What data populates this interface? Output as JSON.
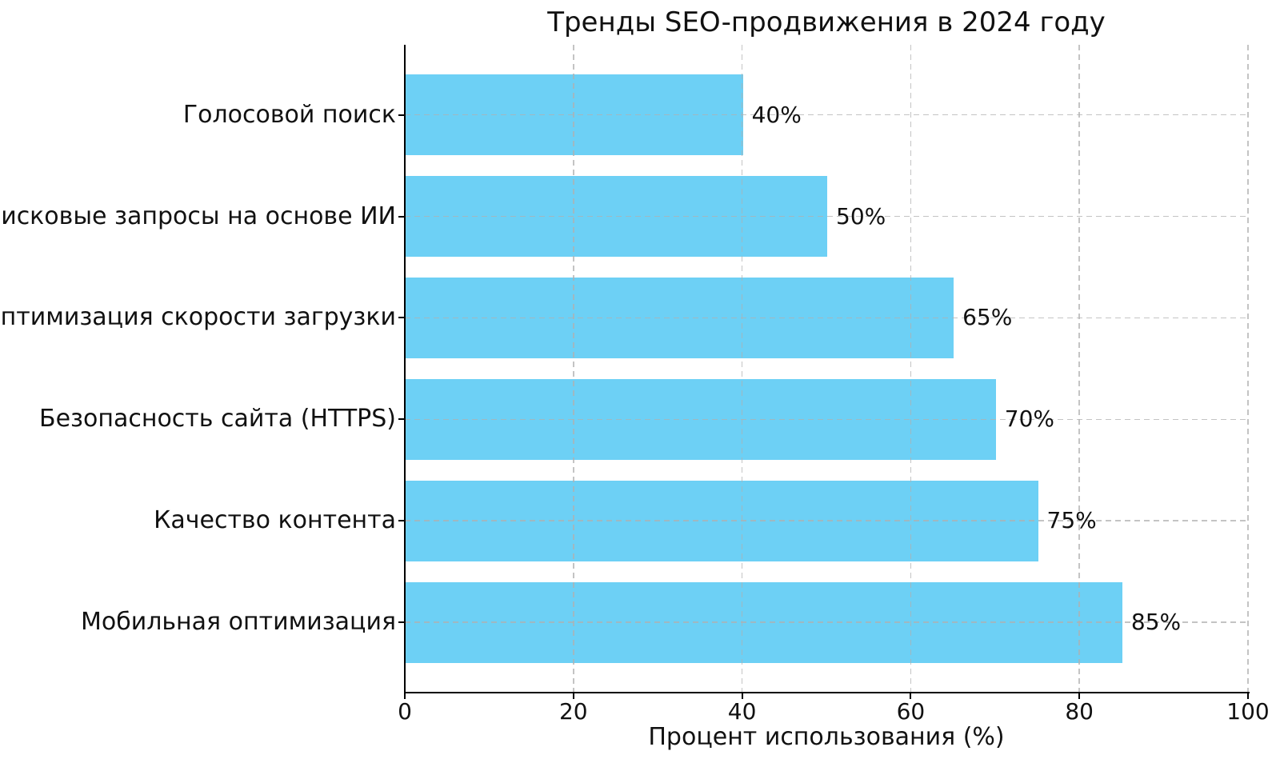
{
  "chart_data": {
    "type": "bar",
    "orientation": "horizontal",
    "title": "Тренды SEO-продвижения в 2024 году",
    "categories_top_to_bottom": [
      "Голосовой поиск",
      "Поисковые запросы на основе ИИ",
      "Оптимизация скорости загрузки",
      "Безопасность сайта (HTTPS)",
      "Качество контента",
      "Мобильная оптимизация"
    ],
    "values": [
      40,
      50,
      65,
      70,
      75,
      85
    ],
    "value_labels": [
      "40%",
      "50%",
      "65%",
      "70%",
      "75%",
      "85%"
    ],
    "xlabel": "Процент использования (%)",
    "ylabel": "",
    "xlim": [
      0,
      100
    ],
    "xticks": [
      0,
      20,
      40,
      60,
      80,
      100
    ],
    "grid": "both-axes, dashed, drawn over bars",
    "legend": "none",
    "bar_color": "#6DD0F5",
    "grid_color": "rgba(176,176,176,0.75)",
    "axis_color": "#000000",
    "text_color": "#111111",
    "background": "#ffffff"
  }
}
